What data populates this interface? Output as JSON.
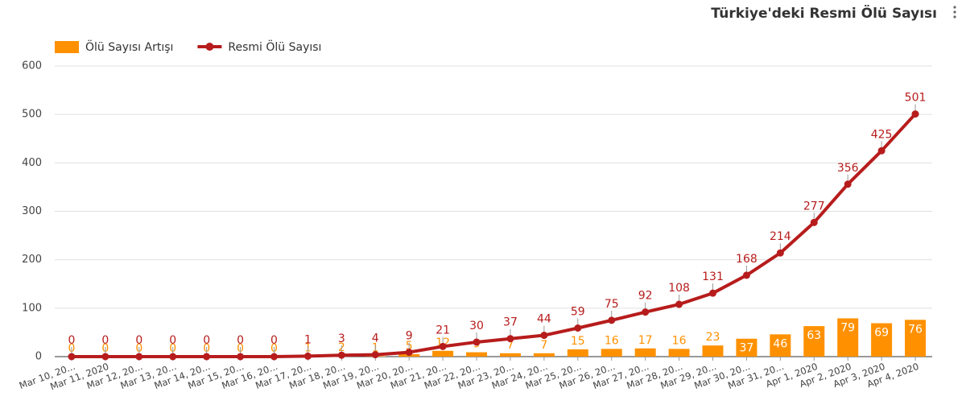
{
  "chart_data": {
    "type": "combo",
    "title": "Türkiye'deki Resmi Ölü Sayısı",
    "categories": [
      "Mar 10, 20...",
      "Mar 11, 2020",
      "Mar 12, 20...",
      "Mar 13, 20...",
      "Mar 14, 20...",
      "Mar 15, 20...",
      "Mar 16, 20...",
      "Mar 17, 20...",
      "Mar 18, 20...",
      "Mar 19, 20...",
      "Mar 20, 20...",
      "Mar 21, 20...",
      "Mar 22, 20...",
      "Mar 23, 20...",
      "Mar 24, 20...",
      "Mar 25, 20...",
      "Mar 26, 20...",
      "Mar 27, 20...",
      "Mar 28, 20...",
      "Mar 29, 20...",
      "Mar 30, 20...",
      "Mar 31, 20...",
      "Apr 1, 2020",
      "Apr 2, 2020",
      "Apr 3, 2020",
      "Apr 4, 2020"
    ],
    "series": [
      {
        "name": "Ölü Sayısı Artışı",
        "type": "bar",
        "color": "#ff9100",
        "values": [
          0,
          0,
          0,
          0,
          0,
          0,
          0,
          1,
          2,
          1,
          5,
          12,
          9,
          7,
          7,
          15,
          16,
          17,
          16,
          23,
          37,
          46,
          63,
          79,
          69,
          76
        ]
      },
      {
        "name": "Resmi Ölü Sayısı",
        "type": "line",
        "color": "#b71c1c",
        "values": [
          0,
          0,
          0,
          0,
          0,
          0,
          0,
          1,
          3,
          4,
          9,
          21,
          30,
          37,
          44,
          59,
          75,
          92,
          108,
          131,
          168,
          214,
          277,
          356,
          425,
          501
        ]
      }
    ],
    "ylim": [
      0,
      600
    ],
    "yticks": [
      0,
      100,
      200,
      300,
      400,
      500,
      600
    ],
    "grid": true,
    "legend": "top-left"
  }
}
